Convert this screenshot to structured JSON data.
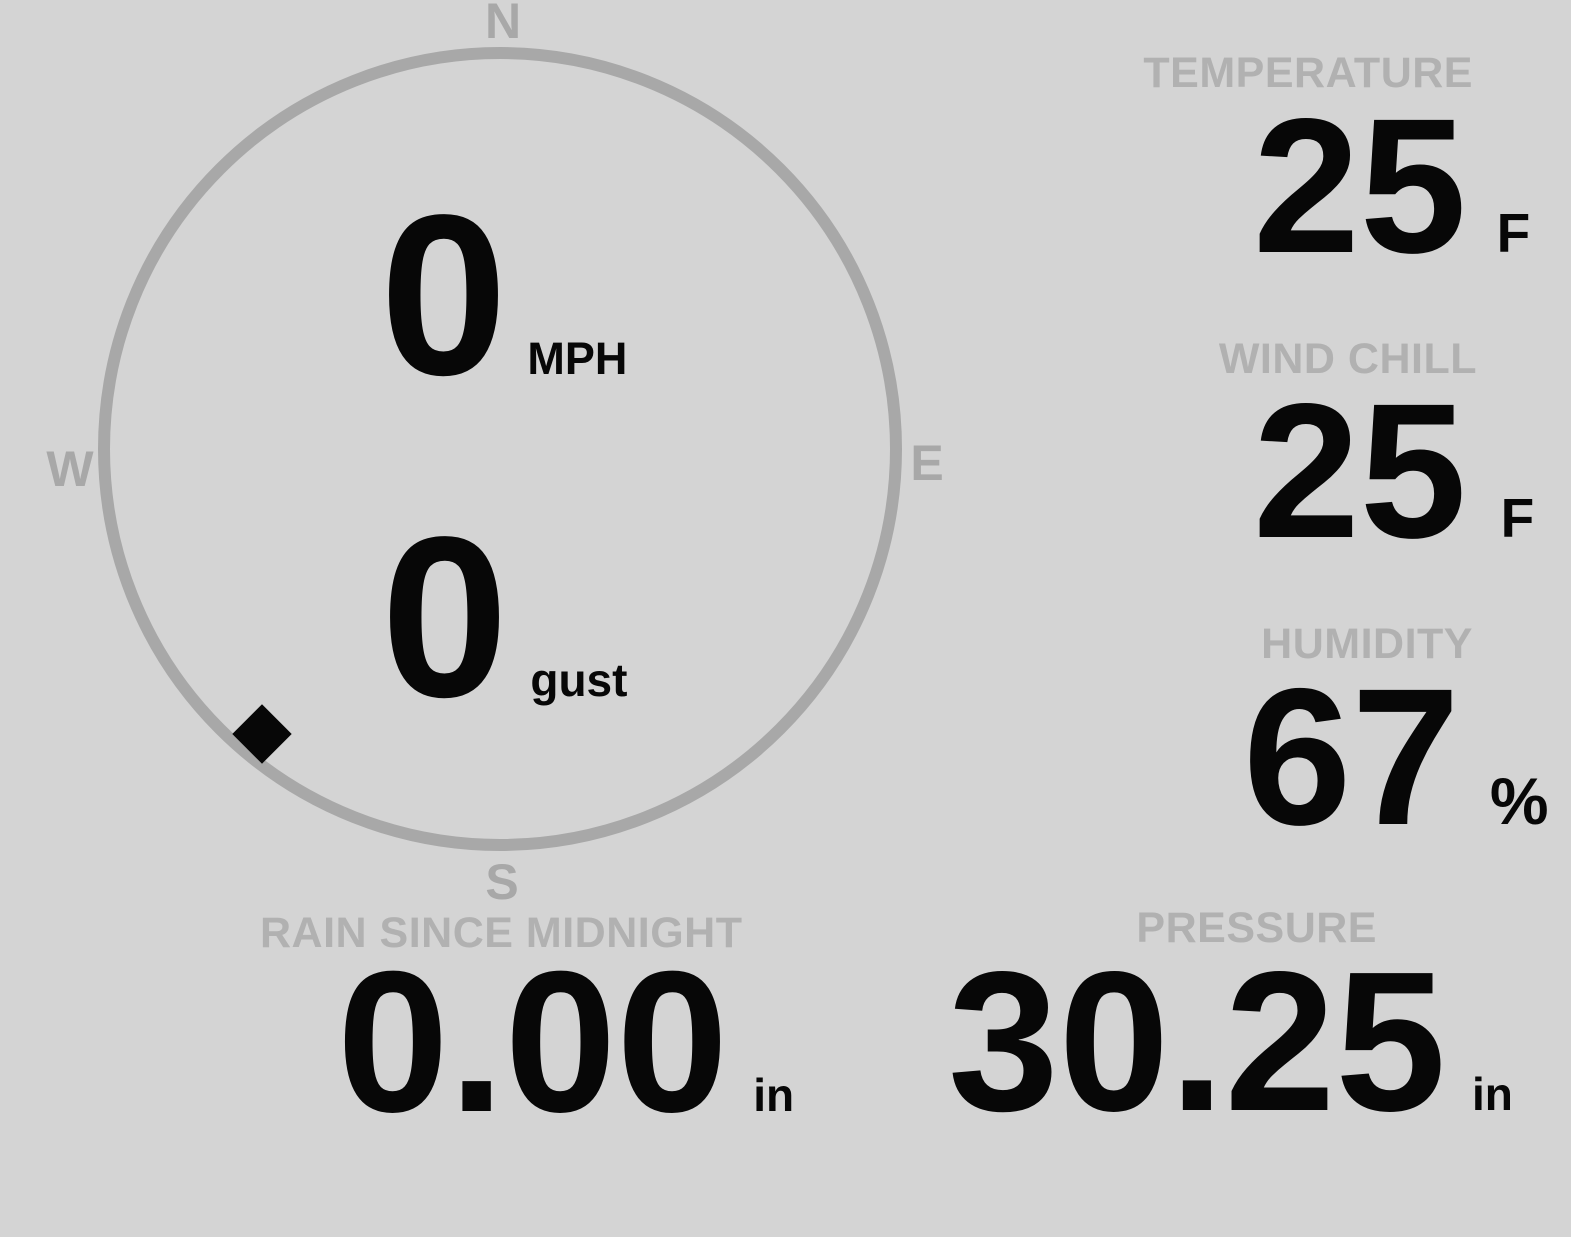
{
  "page": {
    "background_color": "#d4d4d4",
    "value_color": "#070707",
    "label_color": "#b1b1b1",
    "compass_stroke_color": "#a8a8a8"
  },
  "compass": {
    "cardinals": {
      "north": "N",
      "east": "E",
      "south": "S",
      "west": "W"
    },
    "wind_speed": {
      "value": "0",
      "unit": "MPH"
    },
    "wind_gust": {
      "value": "0",
      "unit": "gust"
    },
    "direction_marker": "southwest"
  },
  "metrics": {
    "temperature": {
      "label": "TEMPERATURE",
      "value": "25",
      "unit": "F"
    },
    "wind_chill": {
      "label": "WIND CHILL",
      "value": "25",
      "unit": "F"
    },
    "humidity": {
      "label": "HUMIDITY",
      "value": "67",
      "unit": "%"
    },
    "rain_since_midnight": {
      "label": "RAIN SINCE MIDNIGHT",
      "value": "0.00",
      "unit": "in"
    },
    "pressure": {
      "label": "PRESSURE",
      "value": "30.25",
      "unit": "in"
    }
  }
}
